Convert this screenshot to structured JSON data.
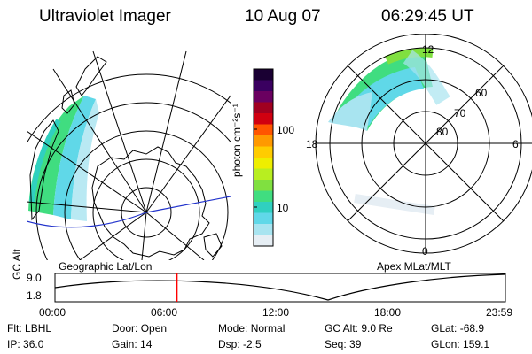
{
  "header": {
    "instrument": "Ultraviolet Imager",
    "date": "10 Aug 07",
    "time": "06:29:45 UT"
  },
  "colorbar": {
    "unit_label": "photon cm⁻²s⁻¹",
    "ticks": [
      "100",
      "10"
    ],
    "colors": [
      "#1a0033",
      "#3a0060",
      "#6a0060",
      "#a00020",
      "#d00010",
      "#ff5500",
      "#ff9900",
      "#ffcc00",
      "#eeee00",
      "#b8ee20",
      "#80e040",
      "#40dd80",
      "#30d0c0",
      "#60d8e8",
      "#a8e4f0",
      "#e6eef4"
    ]
  },
  "left_map": {
    "caption": "Geographic Lat/Lon"
  },
  "right_map": {
    "caption": "Apex  MLat/MLT",
    "mlt_labels": [
      "12",
      "18",
      "6",
      "0"
    ],
    "lat_labels": [
      "60",
      "70",
      "80"
    ]
  },
  "altitude_panel": {
    "ylabel": "GC Alt",
    "y_ticks": [
      "9.0",
      "1.8"
    ],
    "x_ticks": [
      "00:00",
      "06:00",
      "12:00",
      "18:00",
      "23:59"
    ],
    "current_time_hours": 6.5,
    "colors": {
      "marker": "#ff0000"
    }
  },
  "footer": {
    "row1": [
      {
        "label": "Flt:",
        "value": "LBHL"
      },
      {
        "label": "Door:",
        "value": "Open"
      },
      {
        "label": "Mode:",
        "value": "Normal"
      },
      {
        "label": "GC Alt:",
        "value": "9.0 Re"
      },
      {
        "label": "GLat:",
        "value": "-68.9"
      }
    ],
    "row2": [
      {
        "label": "IP:",
        "value": "36.0"
      },
      {
        "label": "Gain:",
        "value": "14"
      },
      {
        "label": "Dsp:",
        "value": "-2.5"
      },
      {
        "label": "Seq:",
        "value": "39"
      },
      {
        "label": "GLon:",
        "value": "159.1"
      }
    ]
  }
}
